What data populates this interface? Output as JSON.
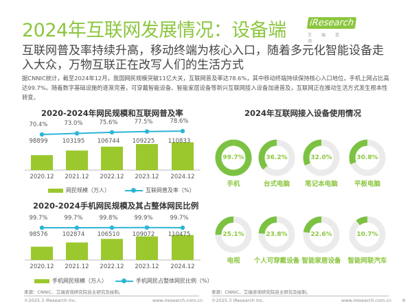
{
  "header": {
    "title": "2024年互联网发展情况：设备端",
    "logo_text": "iResearch",
    "logo_sub": "艾 瑞 咨 询",
    "subtitle": "互联网普及率持续升高，移动终端为核心入口，随着多元化智能设备走入大众，万物互联正在改写人们的生活方式",
    "body": "据CNNIC统计，截至2024年12月，我国网民规模突破11亿大关，互联网普及率达78.6%，其中移动终端持续保持核心入口地位，手机上网占比高达99.7%。随着数字基础设施的逐渐完善，可穿戴智能设备、智能家居设备等新兴互联网接入设备加速普及，互联网正在推动生活方式发生根本性转变。"
  },
  "chart_data": [
    {
      "type": "bar",
      "title": "2020-2024年网民规模和互联网普及率",
      "categories": [
        "2020.12",
        "2021.12",
        "2022.12",
        "2023.12",
        "2024.12"
      ],
      "series": [
        {
          "name": "网民规模（万人）",
          "type": "bar",
          "values": [
            98899,
            103195,
            106744,
            109225,
            110833
          ],
          "labels": [
            "98899",
            "103195",
            "106744",
            "109225",
            "110833"
          ]
        },
        {
          "name": "互联网普及率（%）",
          "type": "line",
          "values": [
            70.4,
            73.0,
            75.6,
            77.5,
            78.6
          ],
          "labels": [
            "70.4%",
            "73.0%",
            "75.6%",
            "77.5%",
            "78.6%"
          ]
        }
      ],
      "colors": {
        "bar": "#9bc82d",
        "line": "#2cb5d6"
      },
      "legend": "bottom"
    },
    {
      "type": "bar",
      "title": "2020-2024手机网民规模及其占整体网民比例",
      "categories": [
        "2020.12",
        "2021.12",
        "2022.12",
        "2023.12",
        "2024.12"
      ],
      "series": [
        {
          "name": "手机网民规模（万人）",
          "type": "bar",
          "values": [
            98576,
            102874,
            106510,
            109072,
            110475
          ],
          "labels": [
            "98576",
            "102874",
            "106510",
            "109072",
            "110475"
          ]
        },
        {
          "name": "手机网民占整体网民比例（%）",
          "type": "line",
          "values": [
            99.7,
            99.7,
            99.8,
            99.9,
            99.7
          ],
          "labels": [
            "99.7%",
            "99.7%",
            "99.8%",
            "99.9%",
            "99.7%"
          ]
        }
      ],
      "colors": {
        "bar": "#9bc82d",
        "line": "#2cb5d6"
      },
      "legend": "bottom"
    },
    {
      "type": "pie",
      "variant": "donut-grid",
      "title": "2024年互联网接入设备使用情况",
      "items": [
        {
          "label": "手机",
          "value": 99.7,
          "text": "99.7%"
        },
        {
          "label": "台式电脑",
          "value": 36.2,
          "text": "36.2%"
        },
        {
          "label": "笔记本电脑",
          "value": 32.0,
          "text": "32.0%"
        },
        {
          "label": "平板电脑",
          "value": 30.8,
          "text": "30.8%"
        },
        {
          "label": "电视",
          "value": 25.1,
          "text": "25.1%"
        },
        {
          "label": "个人可穿戴设备",
          "value": 23.8,
          "text": "23.8%"
        },
        {
          "label": "智能家居设备",
          "value": 22.6,
          "text": "22.6%"
        },
        {
          "label": "智能网联汽车",
          "value": 10.7,
          "text": "10.7%"
        }
      ],
      "colors": {
        "fill": "#7cc242",
        "track": "#ebebeb"
      }
    }
  ],
  "footer": {
    "source_left": "来源：CNNIC、艾瑞咨询研究院自主研究及绘制。",
    "source_right": "来源：CNNIC、艾瑞咨询研究院自主研究及绘制。",
    "copyright_left": "©2025.3 iResearch Inc.",
    "url_left": "www.iresearch.com.cn",
    "copyright_right": "©2025.3 iResearch Inc.",
    "url_right": "www.iresearch.com.cn",
    "page": "8"
  }
}
